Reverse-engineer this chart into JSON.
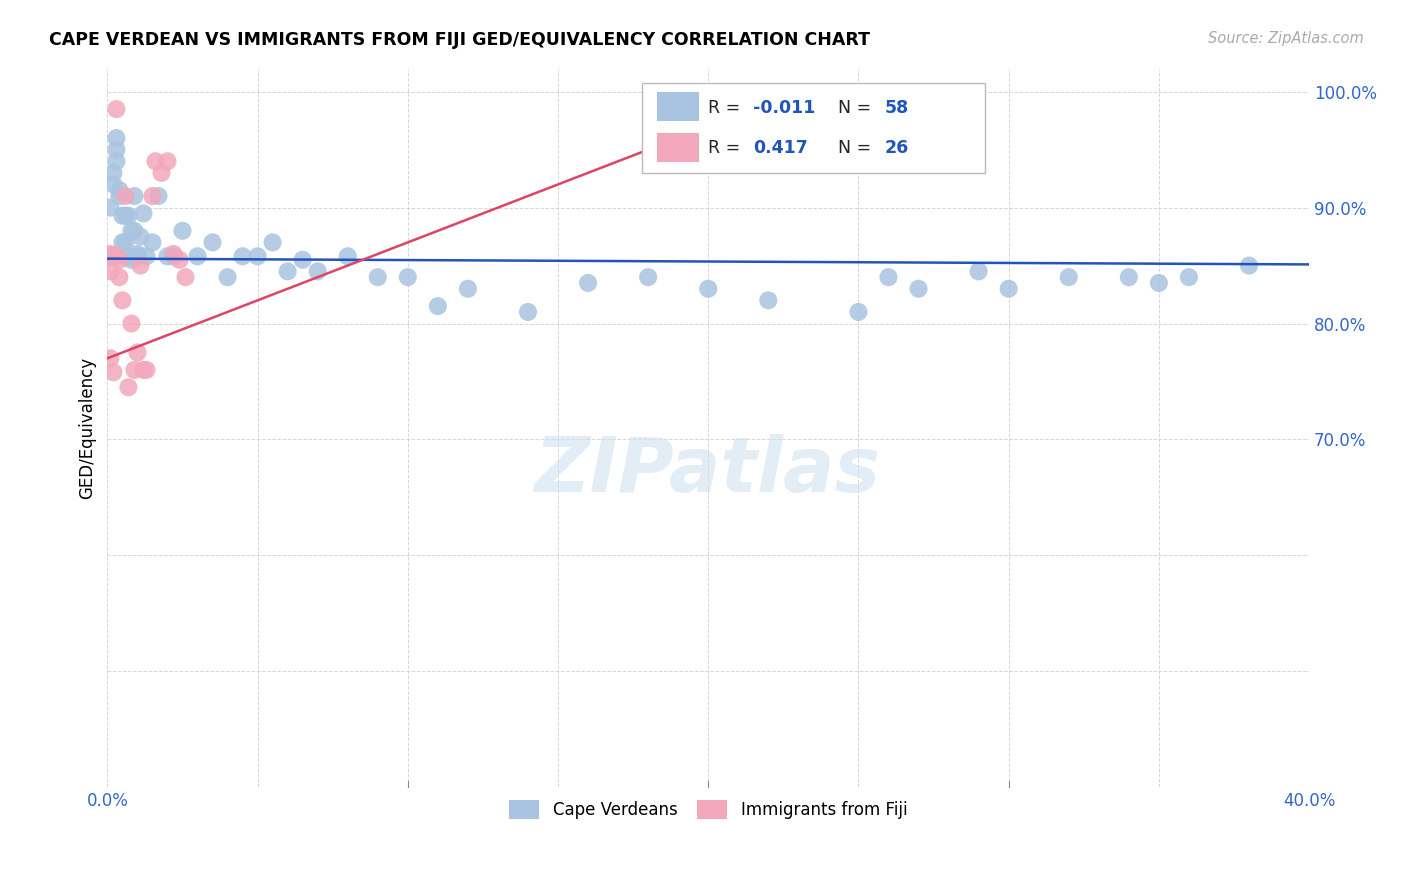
{
  "title": "CAPE VERDEAN VS IMMIGRANTS FROM FIJI GED/EQUIVALENCY CORRELATION CHART",
  "source": "Source: ZipAtlas.com",
  "ylabel": "GED/Equivalency",
  "xlim": [
    0.0,
    0.4
  ],
  "ylim": [
    0.4,
    1.02
  ],
  "xtick_positions": [
    0.0,
    0.05,
    0.1,
    0.15,
    0.2,
    0.25,
    0.3,
    0.35,
    0.4
  ],
  "xtick_labels": [
    "0.0%",
    "",
    "",
    "",
    "",
    "",
    "",
    "",
    "40.0%"
  ],
  "ytick_positions": [
    0.4,
    0.5,
    0.6,
    0.7,
    0.8,
    0.9,
    1.0
  ],
  "ytick_labels": [
    "",
    "",
    "",
    "70.0%",
    "80.0%",
    "90.0%",
    "100.0%"
  ],
  "legend_R1": "-0.011",
  "legend_N1": "58",
  "legend_R2": "0.417",
  "legend_N2": "26",
  "blue_color": "#a8c4e0",
  "pink_color": "#f2a7bc",
  "blue_line_color": "#2255bb",
  "pink_line_color": "#dd4466",
  "watermark": "ZIPatlas",
  "blue_scatter_x": [
    0.001,
    0.001,
    0.002,
    0.002,
    0.003,
    0.003,
    0.003,
    0.004,
    0.004,
    0.005,
    0.005,
    0.006,
    0.006,
    0.007,
    0.007,
    0.008,
    0.008,
    0.009,
    0.009,
    0.01,
    0.01,
    0.011,
    0.012,
    0.013,
    0.015,
    0.017,
    0.02,
    0.022,
    0.025,
    0.03,
    0.035,
    0.04,
    0.045,
    0.05,
    0.055,
    0.06,
    0.065,
    0.07,
    0.08,
    0.09,
    0.1,
    0.11,
    0.12,
    0.14,
    0.16,
    0.18,
    0.2,
    0.22,
    0.25,
    0.27,
    0.3,
    0.32,
    0.34,
    0.35,
    0.36,
    0.38,
    0.26,
    0.29
  ],
  "blue_scatter_y": [
    0.9,
    0.858,
    0.93,
    0.92,
    0.96,
    0.95,
    0.94,
    0.91,
    0.915,
    0.893,
    0.87,
    0.893,
    0.87,
    0.893,
    0.858,
    0.88,
    0.855,
    0.88,
    0.91,
    0.86,
    0.858,
    0.875,
    0.895,
    0.858,
    0.87,
    0.91,
    0.858,
    0.858,
    0.88,
    0.858,
    0.87,
    0.84,
    0.858,
    0.858,
    0.87,
    0.845,
    0.855,
    0.845,
    0.858,
    0.84,
    0.84,
    0.815,
    0.83,
    0.81,
    0.835,
    0.84,
    0.83,
    0.82,
    0.81,
    0.83,
    0.83,
    0.84,
    0.84,
    0.835,
    0.84,
    0.85,
    0.84,
    0.845
  ],
  "pink_scatter_x": [
    0.001,
    0.001,
    0.001,
    0.002,
    0.002,
    0.002,
    0.003,
    0.003,
    0.004,
    0.004,
    0.005,
    0.006,
    0.007,
    0.008,
    0.009,
    0.01,
    0.011,
    0.012,
    0.013,
    0.015,
    0.016,
    0.018,
    0.02,
    0.022,
    0.024,
    0.026
  ],
  "pink_scatter_y": [
    0.86,
    0.845,
    0.77,
    0.858,
    0.858,
    0.758,
    0.985,
    0.858,
    0.855,
    0.84,
    0.82,
    0.91,
    0.745,
    0.8,
    0.76,
    0.775,
    0.85,
    0.76,
    0.76,
    0.91,
    0.94,
    0.93,
    0.94,
    0.86,
    0.855,
    0.84
  ],
  "blue_line_x": [
    0.0,
    0.4
  ],
  "blue_line_y": [
    0.856,
    0.851
  ],
  "pink_line_x": [
    0.0,
    0.2
  ],
  "pink_line_y": [
    0.77,
    0.97
  ]
}
